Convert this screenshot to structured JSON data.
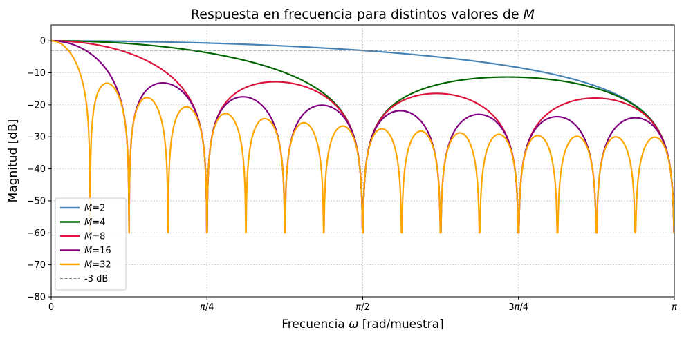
{
  "chart_data": {
    "type": "line",
    "title_prefix": "Respuesta en frecuencia para distintos valores de ",
    "title_var": "M",
    "xlabel_prefix": "Frecuencia ",
    "xlabel_var": "ω",
    "xlabel_suffix": " [rad/muestra]",
    "ylabel": "Magnitud [dB]",
    "xlim_over_pi": [
      0,
      1
    ],
    "ylim": [
      -80,
      5
    ],
    "x_units": "ω/π",
    "xticks": [
      {
        "value_over_pi": 0,
        "label": "0"
      },
      {
        "value_over_pi": 0.25,
        "label": "π/4"
      },
      {
        "value_over_pi": 0.5,
        "label": "π/2"
      },
      {
        "value_over_pi": 0.75,
        "label": "3π/4"
      },
      {
        "value_over_pi": 1,
        "label": "π"
      }
    ],
    "yticks": [
      0,
      -10,
      -20,
      -30,
      -40,
      -50,
      -60,
      -70,
      -80
    ],
    "ytick_labels": [
      "0",
      "−10",
      "−20",
      "−30",
      "−40",
      "−50",
      "−60",
      "−70",
      "−80"
    ],
    "grid": true,
    "grid_style": "dotted",
    "legend_position": "lower-left",
    "dB_floor": -60,
    "series": [
      {
        "name": "M = 2",
        "M": 2,
        "color": "#4682b4",
        "x_over_pi": [
          0,
          0.1,
          0.2,
          0.3,
          0.4,
          0.5,
          0.6,
          0.7,
          0.8,
          0.9,
          0.95,
          1.0
        ],
        "y_db": [
          0,
          -0.11,
          -0.42,
          -0.96,
          -1.75,
          -3.01,
          -4.85,
          -7.6,
          -12.18,
          -22.1,
          -28.1,
          -60
        ]
      },
      {
        "name": "M = 4",
        "M": 4,
        "color": "#006400",
        "x_over_pi": [
          0,
          0.125,
          0.25,
          0.375,
          0.5,
          0.625,
          0.75,
          0.875,
          0.93,
          1.0
        ],
        "y_db": [
          0,
          -0.69,
          -3.01,
          -7.3,
          -60,
          -13.6,
          -11.4,
          -13.6,
          -17.8,
          -60
        ]
      },
      {
        "name": "M = 8",
        "M": 8,
        "color": "#dc143c",
        "x_over_pi": [
          0,
          0.0625,
          0.125,
          0.1875,
          0.25,
          0.3675,
          0.5,
          0.6112,
          0.75,
          0.8709,
          1.0
        ],
        "y_db": [
          0,
          -0.75,
          -3.01,
          -7.29,
          -60,
          -12.8,
          -60,
          -16.4,
          -60,
          -17.9,
          -60
        ]
      },
      {
        "name": "M = 16",
        "M": 16,
        "color": "#800080",
        "x_over_pi": [
          0,
          0.0625,
          0.125,
          0.1773,
          0.25,
          0.3074,
          0.375,
          0.4327,
          0.5,
          0.5553,
          0.625,
          0.6796,
          0.75,
          0.8043,
          0.875,
          0.9291,
          1.0
        ],
        "y_db": [
          0,
          -3.0,
          -60,
          -13.2,
          -60,
          -17.5,
          -60,
          -20.1,
          -60,
          -21.8,
          -60,
          -23.0,
          -60,
          -23.7,
          -60,
          -24.0,
          -60
        ]
      },
      {
        "name": "M = 32",
        "M": 32,
        "color": "#ffa500",
        "x_over_pi": [
          0,
          0.03125,
          0.0625,
          0.0901,
          0.125,
          0.1523,
          0.1875,
          0.2146,
          0.25,
          0.2768,
          0.3125,
          0.3389,
          0.375,
          0.4011,
          0.4375,
          0.4632,
          0.5,
          0.5254,
          0.5625,
          0.5875,
          0.625,
          0.6497,
          0.6875,
          0.7118,
          0.75,
          0.774,
          0.8125,
          0.8361,
          0.875,
          0.8983,
          0.9375,
          0.9604,
          1.0
        ],
        "y_db": [
          0,
          -3.0,
          -60,
          -13.3,
          -60,
          -17.7,
          -60,
          -20.5,
          -60,
          -22.5,
          -60,
          -24.2,
          -60,
          -25.5,
          -60,
          -26.6,
          -60,
          -27.5,
          -60,
          -28.2,
          -60,
          -28.8,
          -60,
          -29.3,
          -60,
          -29.7,
          -60,
          -29.9,
          -60,
          -30.1,
          -60,
          -30.2,
          -60
        ]
      }
    ],
    "reference_line": {
      "name": "-3 dB",
      "y": -3,
      "color": "#808080",
      "style": "dashed"
    }
  }
}
